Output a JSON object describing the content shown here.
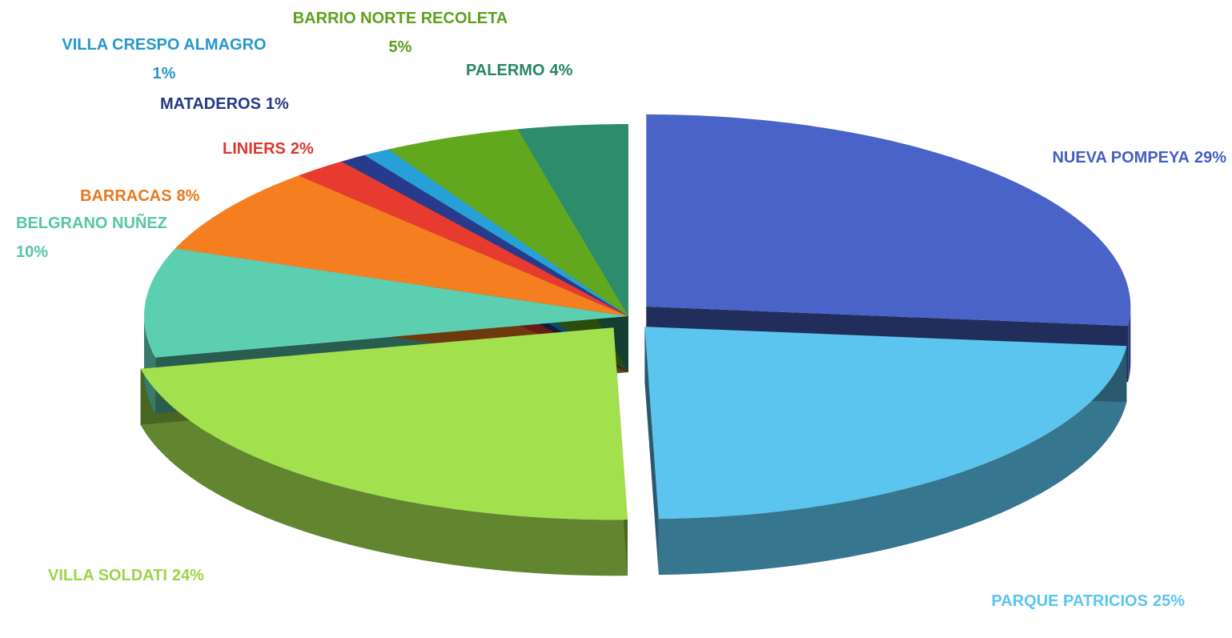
{
  "chart_data": {
    "type": "pie",
    "categories": [
      "NUEVA POMPEYA",
      "PARQUE PATRICIOS",
      "VILLA SOLDATI",
      "BELGRANO NUÑEZ",
      "BARRACAS",
      "LINIERS",
      "MATADEROS",
      "VILLA CRESPO ALMAGRO",
      "BARRIO NORTE RECOLETA",
      "PALERMO"
    ],
    "values": [
      29,
      25,
      24,
      10,
      8,
      2,
      1,
      1,
      5,
      4
    ],
    "value_labels": [
      "29%",
      "25%",
      "24%",
      "10%",
      "8%",
      "2%",
      "1%",
      "1%",
      "5%",
      "4%"
    ],
    "colors": [
      "#4a63c8",
      "#5bc5ef",
      "#a3e04e",
      "#5ccfb0",
      "#f57e20",
      "#e63b2e",
      "#283a8c",
      "#27a0d8",
      "#62a81e",
      "#2c8c6c"
    ]
  }
}
